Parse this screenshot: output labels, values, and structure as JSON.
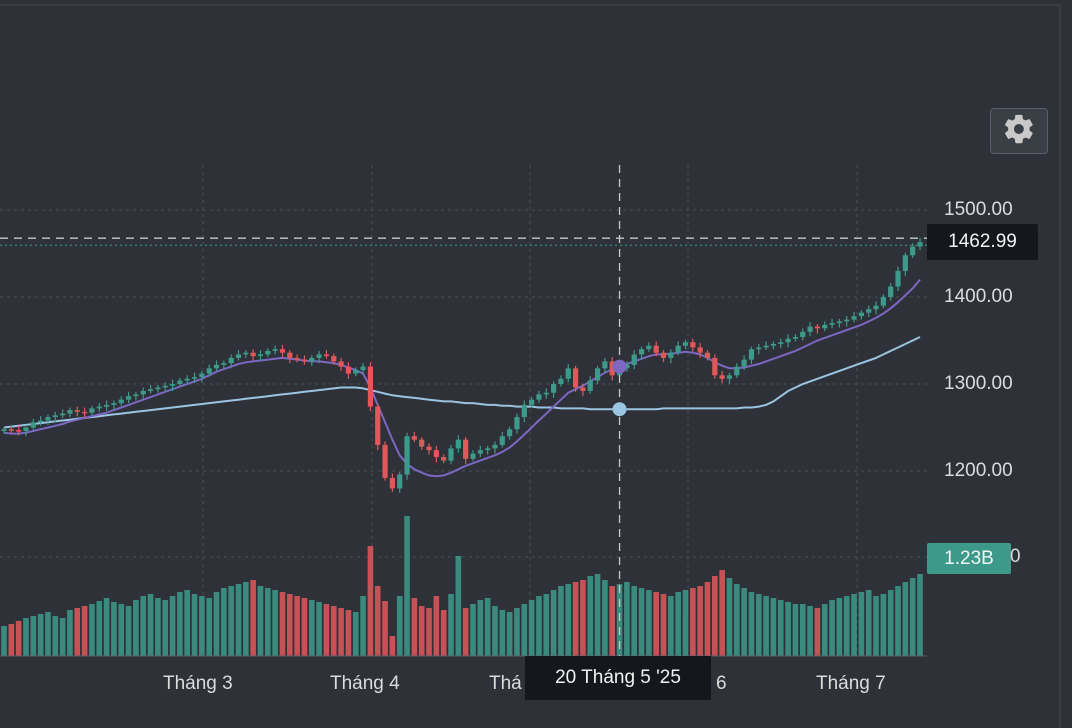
{
  "chart_data": {
    "type": "candlestick",
    "y_ticks": [
      "1500.00",
      "1400.00",
      "1300.00",
      "1200.00"
    ],
    "y_tick_values": [
      1500,
      1400,
      1300,
      1200
    ],
    "ylim": [
      1120,
      1560
    ],
    "x_labels": [
      "Tháng 3",
      "Tháng 4",
      "Thá",
      "6",
      "Tháng 7"
    ],
    "last_price": "1462.99",
    "last_volume_label": "1.23B",
    "volume_axis_partial_label": "0",
    "crosshair_date": "20 Tháng 5 '25",
    "series": [
      {
        "name": "",
        "kind": "close",
        "values": [
          1248,
          1247,
          1246,
          1250,
          1256,
          1258,
          1262,
          1264,
          1266,
          1270,
          1268,
          1267,
          1272,
          1274,
          1276,
          1278,
          1282,
          1286,
          1288,
          1292,
          1294,
          1296,
          1298,
          1300,
          1304,
          1306,
          1308,
          1312,
          1318,
          1322,
          1324,
          1330,
          1334,
          1336,
          1332,
          1334,
          1338,
          1340,
          1336,
          1330,
          1328,
          1326,
          1330,
          1334,
          1332,
          1326,
          1320,
          1312,
          1316,
          1320,
          1274,
          1230,
          1192,
          1180,
          1196,
          1240,
          1236,
          1228,
          1224,
          1216,
          1212,
          1226,
          1236,
          1214,
          1220,
          1224,
          1226,
          1230,
          1240,
          1248,
          1262,
          1276,
          1282,
          1288,
          1290,
          1300,
          1306,
          1318,
          1296,
          1292,
          1304,
          1318,
          1326,
          1310,
          1318,
          1322,
          1334,
          1340,
          1344,
          1336,
          1330,
          1336,
          1344,
          1348,
          1342,
          1336,
          1330,
          1310,
          1306,
          1310,
          1320,
          1328,
          1340,
          1342,
          1344,
          1346,
          1348,
          1352,
          1354,
          1360,
          1366,
          1364,
          1368,
          1370,
          1372,
          1374,
          1378,
          1382,
          1386,
          1390,
          1400,
          1412,
          1430,
          1448,
          1458,
          1463
        ]
      },
      {
        "name": "",
        "kind": "ma_short",
        "values": [
          1244,
          1243,
          1243,
          1244,
          1246,
          1248,
          1250,
          1252,
          1254,
          1257,
          1259,
          1261,
          1263,
          1265,
          1267,
          1270,
          1273,
          1276,
          1279,
          1282,
          1285,
          1288,
          1291,
          1294,
          1297,
          1300,
          1303,
          1306,
          1310,
          1314,
          1317,
          1320,
          1323,
          1325,
          1326,
          1327,
          1328,
          1329,
          1330,
          1329,
          1328,
          1327,
          1326,
          1326,
          1325,
          1324,
          1322,
          1319,
          1316,
          1312,
          1296,
          1276,
          1256,
          1236,
          1218,
          1208,
          1202,
          1198,
          1195,
          1194,
          1195,
          1198,
          1202,
          1206,
          1209,
          1212,
          1215,
          1218,
          1222,
          1227,
          1234,
          1242,
          1250,
          1258,
          1266,
          1274,
          1282,
          1290,
          1294,
          1298,
          1303,
          1308,
          1313,
          1317,
          1320,
          1323,
          1326,
          1329,
          1332,
          1334,
          1334,
          1335,
          1336,
          1337,
          1336,
          1334,
          1330,
          1325,
          1321,
          1318,
          1318,
          1319,
          1321,
          1323,
          1326,
          1329,
          1332,
          1335,
          1338,
          1342,
          1346,
          1350,
          1353,
          1356,
          1359,
          1362,
          1365,
          1368,
          1372,
          1376,
          1381,
          1387,
          1394,
          1402,
          1410,
          1420
        ]
      },
      {
        "name": "",
        "kind": "ma_long",
        "values": [
          1250,
          1251,
          1252,
          1253,
          1254,
          1255,
          1256,
          1257,
          1258,
          1259,
          1260,
          1261,
          1262,
          1263,
          1264,
          1265,
          1266,
          1267,
          1268,
          1269,
          1270,
          1271,
          1272,
          1273,
          1274,
          1275,
          1276,
          1277,
          1278,
          1279,
          1280,
          1281,
          1282,
          1283,
          1284,
          1285,
          1286,
          1287,
          1288,
          1289,
          1290,
          1291,
          1292,
          1293,
          1294,
          1295,
          1296,
          1296,
          1296,
          1295,
          1293,
          1291,
          1289,
          1287,
          1286,
          1285,
          1284,
          1283,
          1282,
          1281,
          1280,
          1280,
          1279,
          1278,
          1278,
          1277,
          1276,
          1276,
          1275,
          1275,
          1274,
          1274,
          1274,
          1273,
          1273,
          1273,
          1272,
          1272,
          1272,
          1272,
          1271,
          1271,
          1271,
          1271,
          1271,
          1271,
          1271,
          1271,
          1271,
          1271,
          1272,
          1272,
          1272,
          1272,
          1272,
          1272,
          1272,
          1272,
          1272,
          1272,
          1272,
          1273,
          1273,
          1274,
          1276,
          1280,
          1286,
          1292,
          1296,
          1300,
          1303,
          1306,
          1309,
          1312,
          1315,
          1318,
          1321,
          1324,
          1327,
          1330,
          1334,
          1338,
          1342,
          1346,
          1350,
          1354
        ]
      }
    ],
    "volume": [
      30,
      32,
      35,
      38,
      40,
      42,
      44,
      40,
      38,
      46,
      48,
      50,
      52,
      55,
      58,
      54,
      52,
      50,
      56,
      60,
      62,
      58,
      56,
      60,
      64,
      66,
      62,
      60,
      58,
      64,
      68,
      70,
      72,
      74,
      76,
      70,
      68,
      66,
      64,
      62,
      60,
      58,
      56,
      54,
      52,
      50,
      48,
      46,
      44,
      60,
      110,
      70,
      55,
      20,
      60,
      140,
      58,
      50,
      48,
      60,
      46,
      62,
      100,
      48,
      52,
      56,
      58,
      50,
      46,
      44,
      48,
      52,
      56,
      60,
      62,
      66,
      70,
      72,
      74,
      76,
      80,
      82,
      76,
      70,
      72,
      74,
      70,
      68,
      66,
      64,
      62,
      60,
      64,
      66,
      68,
      70,
      74,
      80,
      86,
      78,
      72,
      68,
      64,
      62,
      60,
      58,
      56,
      54,
      52,
      52,
      50,
      48,
      52,
      56,
      58,
      60,
      62,
      64,
      66,
      60,
      62,
      66,
      70,
      74,
      78,
      82
    ],
    "colors": {
      "up": "#3d9a8b",
      "down": "#e1585a",
      "ma_short": "#7c67c3",
      "ma_long": "#9bc4e2",
      "background": "#2e3138",
      "grid": "#4a4e55"
    }
  }
}
